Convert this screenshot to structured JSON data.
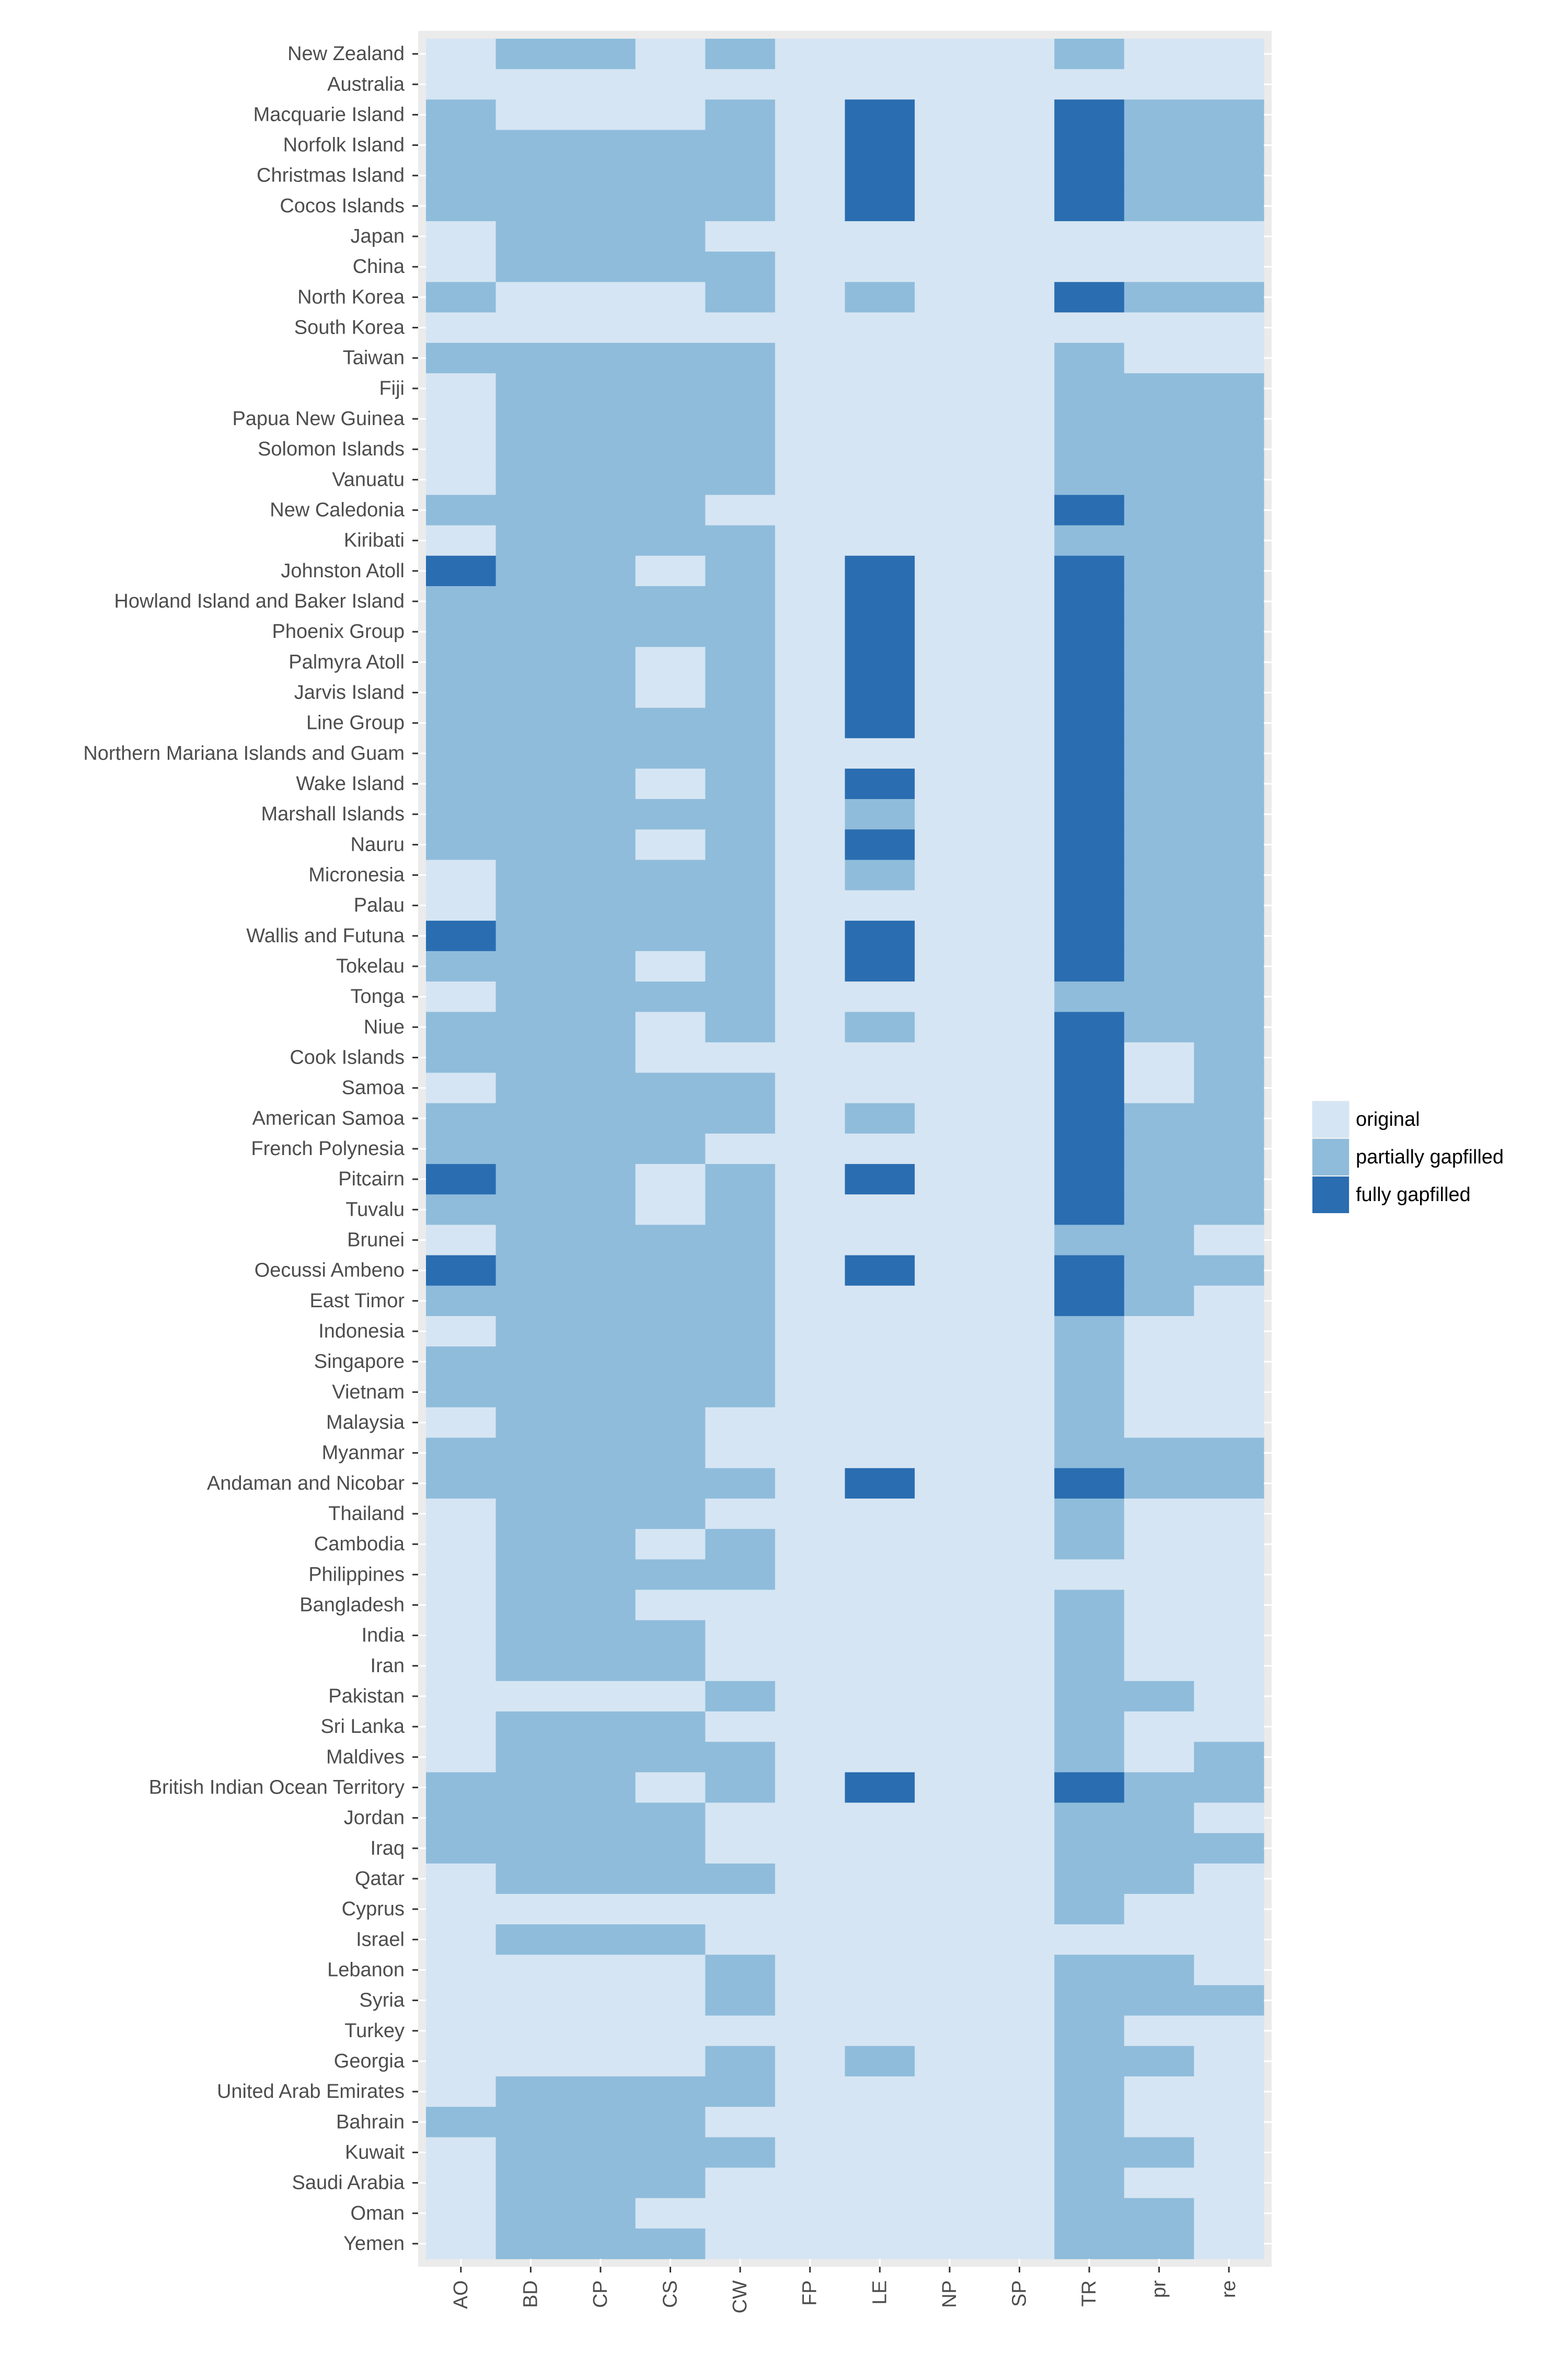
{
  "chart_data": {
    "type": "heatmap",
    "title": "",
    "xlabel": "",
    "ylabel": "",
    "columns": [
      "AO",
      "BD",
      "CP",
      "CS",
      "CW",
      "FP",
      "LE",
      "NP",
      "SP",
      "TR",
      "pr",
      "re"
    ],
    "rows": [
      "New Zealand",
      "Australia",
      "Macquarie Island",
      "Norfolk Island",
      "Christmas Island",
      "Cocos Islands",
      "Japan",
      "China",
      "North Korea",
      "South Korea",
      "Taiwan",
      "Fiji",
      "Papua New Guinea",
      "Solomon Islands",
      "Vanuatu",
      "New Caledonia",
      "Kiribati",
      "Johnston Atoll",
      "Howland Island and Baker Island",
      "Phoenix Group",
      "Palmyra Atoll",
      "Jarvis Island",
      "Line Group",
      "Northern Mariana Islands and Guam",
      "Wake Island",
      "Marshall Islands",
      "Nauru",
      "Micronesia",
      "Palau",
      "Wallis and Futuna",
      "Tokelau",
      "Tonga",
      "Niue",
      "Cook Islands",
      "Samoa",
      "American Samoa",
      "French Polynesia",
      "Pitcairn",
      "Tuvalu",
      "Brunei",
      "Oecussi Ambeno",
      "East Timor",
      "Indonesia",
      "Singapore",
      "Vietnam",
      "Malaysia",
      "Myanmar",
      "Andaman and Nicobar",
      "Thailand",
      "Cambodia",
      "Philippines",
      "Bangladesh",
      "India",
      "Iran",
      "Pakistan",
      "Sri Lanka",
      "Maldives",
      "British Indian Ocean Territory",
      "Jordan",
      "Iraq",
      "Qatar",
      "Cyprus",
      "Israel",
      "Lebanon",
      "Syria",
      "Turkey",
      "Georgia",
      "United Arab Emirates",
      "Bahrain",
      "Kuwait",
      "Saudi Arabia",
      "Oman",
      "Yemen"
    ],
    "legend": {
      "position": "right",
      "items": [
        {
          "label": "original",
          "color": "#d6e5f3"
        },
        {
          "label": "partially gapfilled",
          "color": "#8fbcdb"
        },
        {
          "label": "fully gapfilled",
          "color": "#2a6db1"
        }
      ]
    },
    "value_codes": {
      "0": "original",
      "1": "partially gapfilled",
      "2": "fully gapfilled"
    },
    "values": [
      [
        0,
        1,
        1,
        0,
        1,
        0,
        0,
        0,
        0,
        1,
        0,
        0
      ],
      [
        0,
        0,
        0,
        0,
        0,
        0,
        0,
        0,
        0,
        0,
        0,
        0
      ],
      [
        1,
        0,
        0,
        0,
        1,
        0,
        2,
        0,
        0,
        2,
        1,
        1
      ],
      [
        1,
        1,
        1,
        1,
        1,
        0,
        2,
        0,
        0,
        2,
        1,
        1
      ],
      [
        1,
        1,
        1,
        1,
        1,
        0,
        2,
        0,
        0,
        2,
        1,
        1
      ],
      [
        1,
        1,
        1,
        1,
        1,
        0,
        2,
        0,
        0,
        2,
        1,
        1
      ],
      [
        0,
        1,
        1,
        1,
        0,
        0,
        0,
        0,
        0,
        0,
        0,
        0
      ],
      [
        0,
        1,
        1,
        1,
        1,
        0,
        0,
        0,
        0,
        0,
        0,
        0
      ],
      [
        1,
        0,
        0,
        0,
        1,
        0,
        1,
        0,
        0,
        2,
        1,
        1
      ],
      [
        0,
        0,
        0,
        0,
        0,
        0,
        0,
        0,
        0,
        0,
        0,
        0
      ],
      [
        1,
        1,
        1,
        1,
        1,
        0,
        0,
        0,
        0,
        1,
        0,
        0
      ],
      [
        0,
        1,
        1,
        1,
        1,
        0,
        0,
        0,
        0,
        1,
        1,
        1
      ],
      [
        0,
        1,
        1,
        1,
        1,
        0,
        0,
        0,
        0,
        1,
        1,
        1
      ],
      [
        0,
        1,
        1,
        1,
        1,
        0,
        0,
        0,
        0,
        1,
        1,
        1
      ],
      [
        0,
        1,
        1,
        1,
        1,
        0,
        0,
        0,
        0,
        1,
        1,
        1
      ],
      [
        1,
        1,
        1,
        1,
        0,
        0,
        0,
        0,
        0,
        2,
        1,
        1
      ],
      [
        0,
        1,
        1,
        1,
        1,
        0,
        0,
        0,
        0,
        1,
        1,
        1
      ],
      [
        2,
        1,
        1,
        0,
        1,
        0,
        2,
        0,
        0,
        2,
        1,
        1
      ],
      [
        1,
        1,
        1,
        1,
        1,
        0,
        2,
        0,
        0,
        2,
        1,
        1
      ],
      [
        1,
        1,
        1,
        1,
        1,
        0,
        2,
        0,
        0,
        2,
        1,
        1
      ],
      [
        1,
        1,
        1,
        0,
        1,
        0,
        2,
        0,
        0,
        2,
        1,
        1
      ],
      [
        1,
        1,
        1,
        0,
        1,
        0,
        2,
        0,
        0,
        2,
        1,
        1
      ],
      [
        1,
        1,
        1,
        1,
        1,
        0,
        2,
        0,
        0,
        2,
        1,
        1
      ],
      [
        1,
        1,
        1,
        1,
        1,
        0,
        0,
        0,
        0,
        2,
        1,
        1
      ],
      [
        1,
        1,
        1,
        0,
        1,
        0,
        2,
        0,
        0,
        2,
        1,
        1
      ],
      [
        1,
        1,
        1,
        1,
        1,
        0,
        1,
        0,
        0,
        2,
        1,
        1
      ],
      [
        1,
        1,
        1,
        0,
        1,
        0,
        2,
        0,
        0,
        2,
        1,
        1
      ],
      [
        0,
        1,
        1,
        1,
        1,
        0,
        1,
        0,
        0,
        2,
        1,
        1
      ],
      [
        0,
        1,
        1,
        1,
        1,
        0,
        0,
        0,
        0,
        2,
        1,
        1
      ],
      [
        2,
        1,
        1,
        1,
        1,
        0,
        2,
        0,
        0,
        2,
        1,
        1
      ],
      [
        1,
        1,
        1,
        0,
        1,
        0,
        2,
        0,
        0,
        2,
        1,
        1
      ],
      [
        0,
        1,
        1,
        1,
        1,
        0,
        0,
        0,
        0,
        1,
        1,
        1
      ],
      [
        1,
        1,
        1,
        0,
        1,
        0,
        1,
        0,
        0,
        2,
        1,
        1
      ],
      [
        1,
        1,
        1,
        0,
        0,
        0,
        0,
        0,
        0,
        2,
        0,
        1
      ],
      [
        0,
        1,
        1,
        1,
        1,
        0,
        0,
        0,
        0,
        2,
        0,
        1
      ],
      [
        1,
        1,
        1,
        1,
        1,
        0,
        1,
        0,
        0,
        2,
        1,
        1
      ],
      [
        1,
        1,
        1,
        1,
        0,
        0,
        0,
        0,
        0,
        2,
        1,
        1
      ],
      [
        2,
        1,
        1,
        0,
        1,
        0,
        2,
        0,
        0,
        2,
        1,
        1
      ],
      [
        1,
        1,
        1,
        0,
        1,
        0,
        0,
        0,
        0,
        2,
        1,
        1
      ],
      [
        0,
        1,
        1,
        1,
        1,
        0,
        0,
        0,
        0,
        1,
        1,
        0
      ],
      [
        2,
        1,
        1,
        1,
        1,
        0,
        2,
        0,
        0,
        2,
        1,
        1
      ],
      [
        1,
        1,
        1,
        1,
        1,
        0,
        0,
        0,
        0,
        2,
        1,
        0
      ],
      [
        0,
        1,
        1,
        1,
        1,
        0,
        0,
        0,
        0,
        1,
        0,
        0
      ],
      [
        1,
        1,
        1,
        1,
        1,
        0,
        0,
        0,
        0,
        1,
        0,
        0
      ],
      [
        1,
        1,
        1,
        1,
        1,
        0,
        0,
        0,
        0,
        1,
        0,
        0
      ],
      [
        0,
        1,
        1,
        1,
        0,
        0,
        0,
        0,
        0,
        1,
        0,
        0
      ],
      [
        1,
        1,
        1,
        1,
        0,
        0,
        0,
        0,
        0,
        1,
        1,
        1
      ],
      [
        1,
        1,
        1,
        1,
        1,
        0,
        2,
        0,
        0,
        2,
        1,
        1
      ],
      [
        0,
        1,
        1,
        1,
        0,
        0,
        0,
        0,
        0,
        1,
        0,
        0
      ],
      [
        0,
        1,
        1,
        0,
        1,
        0,
        0,
        0,
        0,
        1,
        0,
        0
      ],
      [
        0,
        1,
        1,
        1,
        1,
        0,
        0,
        0,
        0,
        0,
        0,
        0
      ],
      [
        0,
        1,
        1,
        0,
        0,
        0,
        0,
        0,
        0,
        1,
        0,
        0
      ],
      [
        0,
        1,
        1,
        1,
        0,
        0,
        0,
        0,
        0,
        1,
        0,
        0
      ],
      [
        0,
        1,
        1,
        1,
        0,
        0,
        0,
        0,
        0,
        1,
        0,
        0
      ],
      [
        0,
        0,
        0,
        0,
        1,
        0,
        0,
        0,
        0,
        1,
        1,
        0
      ],
      [
        0,
        1,
        1,
        1,
        0,
        0,
        0,
        0,
        0,
        1,
        0,
        0
      ],
      [
        0,
        1,
        1,
        1,
        1,
        0,
        0,
        0,
        0,
        1,
        0,
        1
      ],
      [
        1,
        1,
        1,
        0,
        1,
        0,
        2,
        0,
        0,
        2,
        1,
        1
      ],
      [
        1,
        1,
        1,
        1,
        0,
        0,
        0,
        0,
        0,
        1,
        1,
        0
      ],
      [
        1,
        1,
        1,
        1,
        0,
        0,
        0,
        0,
        0,
        1,
        1,
        1
      ],
      [
        0,
        1,
        1,
        1,
        1,
        0,
        0,
        0,
        0,
        1,
        1,
        0
      ],
      [
        0,
        0,
        0,
        0,
        0,
        0,
        0,
        0,
        0,
        1,
        0,
        0
      ],
      [
        0,
        1,
        1,
        1,
        0,
        0,
        0,
        0,
        0,
        0,
        0,
        0
      ],
      [
        0,
        0,
        0,
        0,
        1,
        0,
        0,
        0,
        0,
        1,
        1,
        0
      ],
      [
        0,
        0,
        0,
        0,
        1,
        0,
        0,
        0,
        0,
        1,
        1,
        1
      ],
      [
        0,
        0,
        0,
        0,
        0,
        0,
        0,
        0,
        0,
        1,
        0,
        0
      ],
      [
        0,
        0,
        0,
        0,
        1,
        0,
        1,
        0,
        0,
        1,
        1,
        0
      ],
      [
        0,
        1,
        1,
        1,
        1,
        0,
        0,
        0,
        0,
        1,
        0,
        0
      ],
      [
        1,
        1,
        1,
        1,
        0,
        0,
        0,
        0,
        0,
        1,
        0,
        0
      ],
      [
        0,
        1,
        1,
        1,
        1,
        0,
        0,
        0,
        0,
        1,
        1,
        0
      ],
      [
        0,
        1,
        1,
        1,
        0,
        0,
        0,
        0,
        0,
        1,
        0,
        0
      ],
      [
        0,
        1,
        1,
        0,
        0,
        0,
        0,
        0,
        0,
        1,
        1,
        0
      ],
      [
        0,
        1,
        1,
        1,
        0,
        0,
        0,
        0,
        0,
        1,
        1,
        0
      ]
    ]
  }
}
